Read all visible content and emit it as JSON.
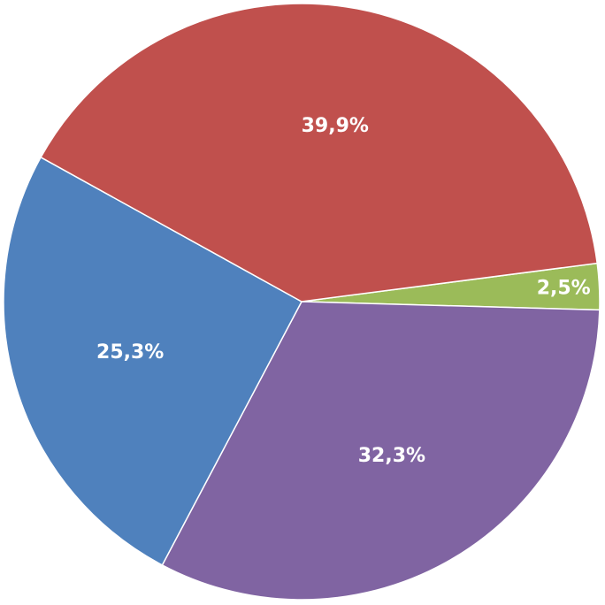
{
  "chart_data": {
    "type": "pie",
    "slices": [
      {
        "label": "2,5%",
        "value": 2.5,
        "color": "#9BBB59"
      },
      {
        "label": "32,3%",
        "value": 32.3,
        "color": "#8064A2"
      },
      {
        "label": "25,3%",
        "value": 25.3,
        "color": "#4F81BD"
      },
      {
        "label": "39,9%",
        "value": 39.9,
        "color": "#C0504D"
      }
    ],
    "start_angle_deg": -7.4,
    "direction": "clockwise",
    "legend": "none",
    "title": ""
  }
}
